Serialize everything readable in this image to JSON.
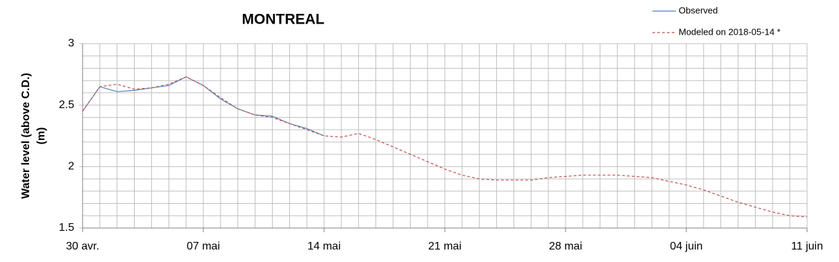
{
  "chart_data": {
    "type": "line",
    "title": "MONTREAL",
    "ylabel": [
      "Water level (above C.D.)",
      "(m)"
    ],
    "categories": [
      "30 avr.",
      null,
      null,
      null,
      null,
      null,
      null,
      "07 mai",
      null,
      null,
      null,
      null,
      null,
      null,
      "14 mai",
      null,
      null,
      null,
      null,
      null,
      null,
      "21 mai",
      null,
      null,
      null,
      null,
      null,
      null,
      "28 mai",
      null,
      null,
      null,
      null,
      null,
      null,
      "04 juin",
      null,
      null,
      null,
      null,
      null,
      null,
      "11 juin"
    ],
    "series": [
      {
        "name": "Observed",
        "color": "#4f81bd",
        "dashed": false,
        "values": [
          2.45,
          2.65,
          2.61,
          2.62,
          2.64,
          2.66,
          2.73,
          2.66,
          2.55,
          2.47,
          2.42,
          2.41,
          2.35,
          2.31,
          2.25,
          null,
          null,
          null,
          null,
          null,
          null,
          null,
          null,
          null,
          null,
          null,
          null,
          null,
          null,
          null,
          null,
          null,
          null,
          null,
          null,
          null,
          null,
          null,
          null,
          null,
          null,
          null,
          null
        ]
      },
      {
        "name": "Modeled on 2018-05-14 *",
        "color": "#c0504d",
        "dashed": true,
        "values": [
          2.45,
          2.65,
          2.67,
          2.63,
          2.64,
          2.67,
          2.73,
          2.66,
          2.56,
          2.47,
          2.42,
          2.4,
          2.35,
          2.3,
          2.25,
          2.24,
          2.27,
          2.22,
          2.16,
          2.1,
          2.04,
          1.98,
          1.93,
          1.9,
          1.89,
          1.89,
          1.89,
          1.91,
          1.92,
          1.93,
          1.93,
          1.93,
          1.92,
          1.91,
          1.88,
          1.85,
          1.81,
          1.76,
          1.71,
          1.67,
          1.63,
          1.6,
          1.59
        ]
      }
    ],
    "ylim": [
      1.5,
      3
    ],
    "yticks": [
      1.5,
      2,
      2.5,
      3
    ],
    "minor_yticks": [
      1.6,
      1.7,
      1.8,
      1.9,
      2.1,
      2.2,
      2.3,
      2.4,
      2.6,
      2.7,
      2.8,
      2.9
    ],
    "grid": true,
    "legend": "top-right"
  }
}
